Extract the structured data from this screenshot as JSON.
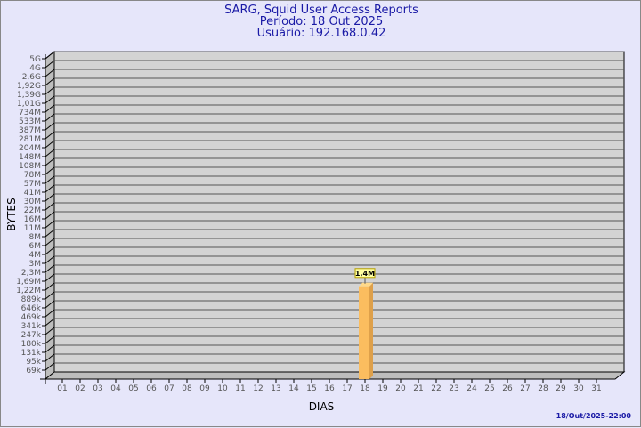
{
  "header": {
    "title": "SARG, Squid User Access Reports",
    "period": "Período: 18 Out 2025",
    "user": "Usuário: 192.168.0.42"
  },
  "footer": {
    "timestamp": "18/Out/2025-22:00"
  },
  "chart_data": {
    "type": "bar",
    "xlabel": "DIAS",
    "ylabel": "BYTES",
    "y_scale": "log",
    "grid": true,
    "y_ticks": [
      "5G",
      "4G",
      "2,6G",
      "1,92G",
      "1,39G",
      "1,01G",
      "734M",
      "533M",
      "387M",
      "281M",
      "204M",
      "148M",
      "108M",
      "78M",
      "57M",
      "41M",
      "30M",
      "22M",
      "16M",
      "11M",
      "8M",
      "6M",
      "4M",
      "3M",
      "2,3M",
      "1,69M",
      "1,22M",
      "889k",
      "646k",
      "469k",
      "341k",
      "247k",
      "180k",
      "131k",
      "95k",
      "69k"
    ],
    "categories": [
      "01",
      "02",
      "03",
      "04",
      "05",
      "06",
      "07",
      "08",
      "09",
      "10",
      "11",
      "12",
      "13",
      "14",
      "15",
      "16",
      "17",
      "18",
      "19",
      "20",
      "21",
      "22",
      "23",
      "24",
      "25",
      "26",
      "27",
      "28",
      "29",
      "30",
      "31"
    ],
    "values": [
      {
        "category": "18",
        "value": 1400000,
        "label": "1,4M"
      }
    ],
    "colors": {
      "bar": "#fbbd5f",
      "bar_side": "#dea04a",
      "wall": "#d3d3d3",
      "grid": "#555555"
    }
  }
}
